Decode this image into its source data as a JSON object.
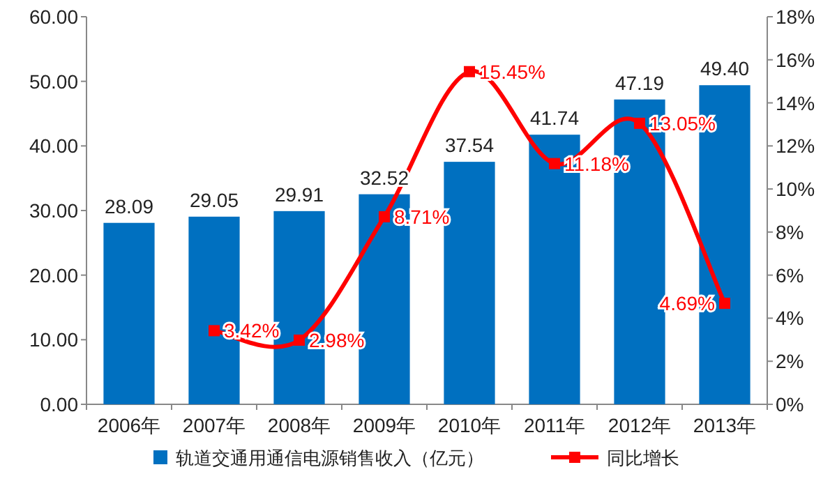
{
  "chart_data": {
    "type": "bar",
    "categories": [
      "2006年",
      "2007年",
      "2008年",
      "2009年",
      "2010年",
      "2011年",
      "2012年",
      "2013年"
    ],
    "series": [
      {
        "name": "轨道交通用通信电源销售收入（亿元）",
        "color": "#0070c0",
        "values": [
          28.09,
          29.05,
          29.91,
          32.52,
          37.54,
          41.74,
          47.19,
          49.4
        ],
        "value_labels": [
          "28.09",
          "29.05",
          "29.91",
          "32.52",
          "37.54",
          "41.74",
          "47.19",
          "49.40"
        ]
      },
      {
        "name": "同比增长",
        "type": "line",
        "axis": "y2",
        "color": "#ff0000",
        "values": [
          null,
          3.42,
          2.98,
          8.71,
          15.45,
          11.18,
          13.05,
          4.69
        ],
        "value_labels": [
          null,
          "3.42%",
          "2.98%",
          "8.71%",
          "15.45%",
          "11.18%",
          "13.05%",
          "4.69%"
        ]
      }
    ],
    "ylim": [
      0,
      60
    ],
    "yticks": [
      {
        "value": 0,
        "label": "0.00"
      },
      {
        "value": 10,
        "label": "10.00"
      },
      {
        "value": 20,
        "label": "20.00"
      },
      {
        "value": 30,
        "label": "30.00"
      },
      {
        "value": 40,
        "label": "40.00"
      },
      {
        "value": 50,
        "label": "50.00"
      },
      {
        "value": 60,
        "label": "60.00"
      }
    ],
    "y2lim": [
      0,
      18
    ],
    "y2ticks": [
      {
        "value": 0,
        "label": "0%"
      },
      {
        "value": 2,
        "label": "2%"
      },
      {
        "value": 4,
        "label": "4%"
      },
      {
        "value": 6,
        "label": "6%"
      },
      {
        "value": 8,
        "label": "8%"
      },
      {
        "value": 10,
        "label": "10%"
      },
      {
        "value": 12,
        "label": "12%"
      },
      {
        "value": 14,
        "label": "14%"
      },
      {
        "value": 16,
        "label": "16%"
      },
      {
        "value": 18,
        "label": "18%"
      }
    ],
    "legend": "bottom",
    "marker": "square",
    "line_style": "solid"
  }
}
